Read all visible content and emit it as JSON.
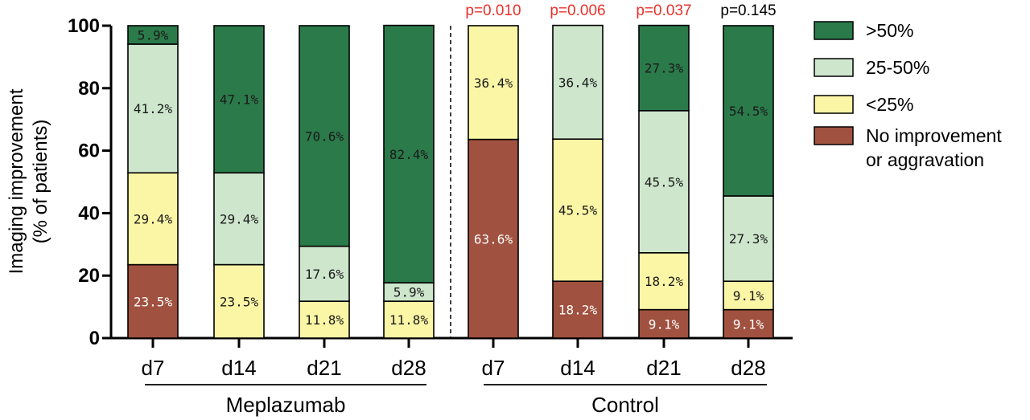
{
  "chart_data": {
    "type": "bar",
    "stacked": true,
    "ylabel_lines": [
      "Imaging improvement",
      "(% of patients)"
    ],
    "ylim": [
      0,
      100
    ],
    "yticks": [
      "0",
      "20",
      "40",
      "60",
      "80",
      "100"
    ],
    "groups": [
      {
        "label": "Meplazumab",
        "categories": [
          "d7",
          "d14",
          "d21",
          "d28"
        ]
      },
      {
        "label": "Control",
        "categories": [
          "d7",
          "d14",
          "d21",
          "d28"
        ]
      }
    ],
    "categories": [
      "d7",
      "d14",
      "d21",
      "d28",
      "d7",
      "d14",
      "d21",
      "d28"
    ],
    "series": [
      {
        "name": "No improvement or aggravation",
        "color": "#a0513f",
        "label_color": "#ffffff",
        "values": [
          23.5,
          0,
          0,
          0,
          63.6,
          18.2,
          9.1,
          9.1
        ],
        "labels": [
          "23.5%",
          "",
          "",
          "",
          "63.6%",
          "18.2%",
          "9.1%",
          "9.1%"
        ]
      },
      {
        "name": "<25%",
        "color": "#fbf6a6",
        "label_color": "#1a1a1a",
        "values": [
          29.4,
          23.5,
          11.8,
          11.8,
          36.4,
          45.5,
          18.2,
          9.1
        ],
        "labels": [
          "29.4%",
          "23.5%",
          "11.8%",
          "11.8%",
          "36.4%",
          "45.5%",
          "18.2%",
          "9.1%"
        ]
      },
      {
        "name": "25-50%",
        "color": "#cde6cc",
        "label_color": "#1a1a1a",
        "values": [
          41.2,
          29.4,
          17.6,
          5.9,
          0,
          36.4,
          45.5,
          27.3
        ],
        "labels": [
          "41.2%",
          "29.4%",
          "17.6%",
          "5.9%",
          "",
          "36.4%",
          "45.5%",
          "27.3%"
        ]
      },
      {
        "name": ">50%",
        "color": "#2b7a4a",
        "label_color": "#1a1a1a",
        "values": [
          5.9,
          47.1,
          70.6,
          82.4,
          0,
          0,
          27.3,
          54.5
        ],
        "labels": [
          "5.9%",
          "47.1%",
          "70.6%",
          "82.4%",
          "",
          "",
          "27.3%",
          "54.5%"
        ]
      }
    ],
    "annotations": [
      {
        "text": "p=0.010",
        "color": "#e8312b",
        "bar_index": 4
      },
      {
        "text": "p=0.006",
        "color": "#e8312b",
        "bar_index": 5
      },
      {
        "text": "p=0.037",
        "color": "#e8312b",
        "bar_index": 6
      },
      {
        "text": "p=0.145",
        "color": "#000000",
        "bar_index": 7
      }
    ],
    "legend": {
      "position": "right",
      "entries": [
        {
          "lines": [
            ">50%"
          ],
          "color": "#2b7a4a"
        },
        {
          "lines": [
            "25-50%"
          ],
          "color": "#cde6cc"
        },
        {
          "lines": [
            "<25%"
          ],
          "color": "#fbf6a6"
        },
        {
          "lines": [
            "No improvement",
            "or aggravation"
          ],
          "color": "#a0513f"
        }
      ]
    },
    "divider": "dashed line between Meplazumab and Control groups"
  }
}
